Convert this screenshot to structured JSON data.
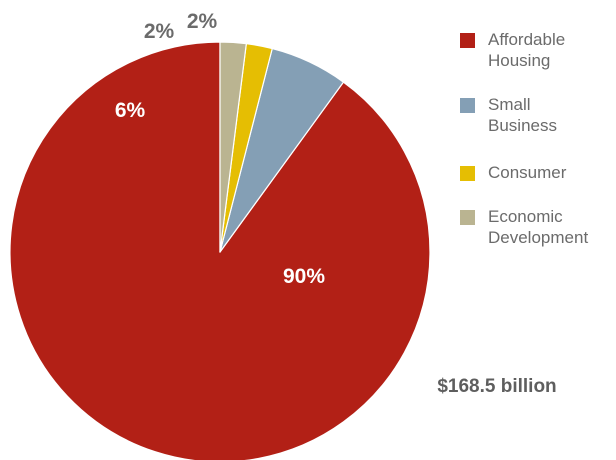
{
  "chart_data": {
    "type": "pie",
    "series": [
      {
        "name": "Affordable Housing",
        "legend_lines": [
          "Affordable",
          "Housing"
        ],
        "value": 90,
        "label": "90%",
        "color": "#b22016",
        "label_color": "#ffffff"
      },
      {
        "name": "Small Business",
        "legend_lines": [
          "Small",
          "Business"
        ],
        "value": 6,
        "label": "6%",
        "color": "#849fb5",
        "label_color": "#ffffff"
      },
      {
        "name": "Consumer",
        "legend_lines": [
          "Consumer"
        ],
        "value": 2,
        "label": "2%",
        "color": "#e5be03",
        "label_color": "#6b6b6b"
      },
      {
        "name": "Economic Development",
        "legend_lines": [
          "Economic",
          "Development"
        ],
        "value": 2,
        "label": "2%",
        "color": "#bab491",
        "label_color": "#6b6b6b"
      }
    ],
    "total_label": "$168.5 billion",
    "legend_position": "top-right",
    "start": "12 o'clock",
    "direction": "counterclockwise"
  }
}
